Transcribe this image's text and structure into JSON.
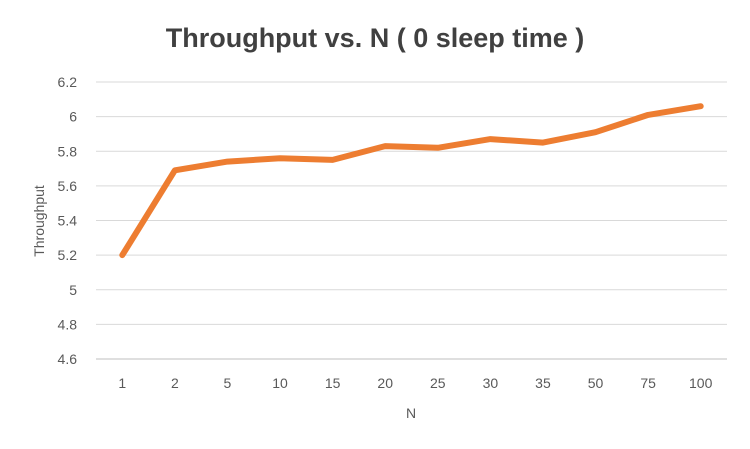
{
  "chart_data": {
    "type": "line",
    "title": "Throughput vs. N ( 0 sleep time )",
    "xlabel": "N",
    "ylabel": "Throughput",
    "categories": [
      "1",
      "2",
      "5",
      "10",
      "15",
      "20",
      "25",
      "30",
      "35",
      "50",
      "75",
      "100"
    ],
    "series": [
      {
        "values": [
          5.2,
          5.69,
          5.74,
          5.76,
          5.75,
          5.83,
          5.82,
          5.87,
          5.85,
          5.91,
          6.01,
          6.06
        ],
        "color": "#ed7d31"
      }
    ],
    "ylim": [
      4.6,
      6.2
    ],
    "yticks": [
      "4.6",
      "4.8",
      "5",
      "5.2",
      "5.4",
      "5.6",
      "5.8",
      "6",
      "6.2"
    ],
    "grid": true,
    "legend": "none"
  }
}
